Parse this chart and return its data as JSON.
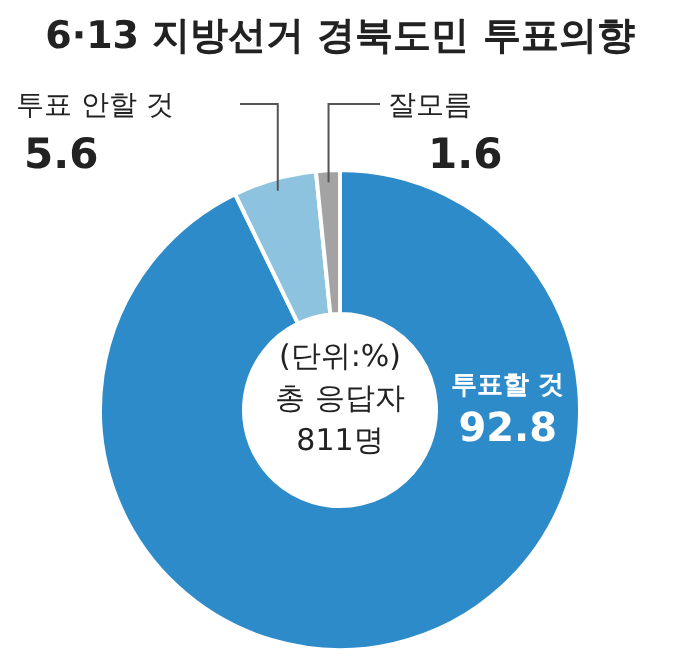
{
  "chart_data": {
    "type": "donut",
    "title": "6·13 지방선거 경북도민 투표의향",
    "categories": [
      "투표할 것",
      "투표 안할 것",
      "잘모름"
    ],
    "values": [
      92.8,
      5.6,
      1.6
    ],
    "colors": [
      "#2e8bc9",
      "#8ec3e0",
      "#a3a3a3"
    ],
    "data_labels": true,
    "annotations": [
      "(단위:%)",
      "총 응답자",
      "811명"
    ]
  }
}
